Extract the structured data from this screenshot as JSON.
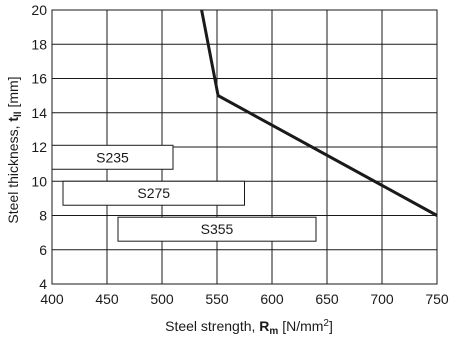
{
  "chart_data": {
    "type": "line",
    "xlabel": {
      "prefix": "Steel strength, ",
      "symbol": "R",
      "subscript": "m",
      "unit_open": " [N/mm",
      "unit_sup": "2",
      "unit_close": "]"
    },
    "ylabel": {
      "prefix": "Steel thickness, ",
      "symbol": "t",
      "subscript": "ll",
      "unit": " [mm]"
    },
    "xlim": [
      400,
      750
    ],
    "ylim": [
      4,
      20
    ],
    "x_ticks": [
      400,
      450,
      500,
      550,
      600,
      650,
      700,
      750
    ],
    "y_ticks": [
      4,
      6,
      8,
      10,
      12,
      14,
      16,
      18,
      20
    ],
    "grid": true,
    "series": [
      {
        "x": [
          536,
          551,
          750
        ],
        "y": [
          20,
          15,
          8
        ],
        "color": "#1a1a1a"
      }
    ],
    "bands": [
      {
        "label": "S235",
        "x_range": [
          400,
          510
        ],
        "y_range": [
          10.7,
          12.1
        ]
      },
      {
        "label": "S275",
        "x_range": [
          410,
          575
        ],
        "y_range": [
          8.6,
          10.0
        ]
      },
      {
        "label": "S355",
        "x_range": [
          460,
          640
        ],
        "y_range": [
          6.5,
          7.9
        ]
      }
    ]
  }
}
